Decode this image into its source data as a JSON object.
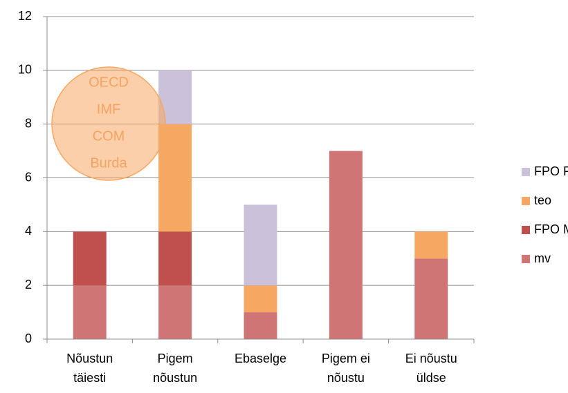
{
  "chart_data": {
    "type": "stacked_bar",
    "categories": [
      "Nõustun\ntäiesti",
      "Pigem\nnõustun",
      "Ebaselge",
      "Pigem ei\nnõustu",
      "Ei nõustu\nüldse"
    ],
    "series": [
      {
        "name": "mv",
        "color": "#d07575",
        "values": [
          2,
          2,
          1,
          7,
          3
        ]
      },
      {
        "name": "FPO M",
        "color": "#c0504d",
        "values": [
          2,
          2,
          0,
          0,
          0
        ]
      },
      {
        "name": "teo",
        "color": "#f6a862",
        "values": [
          0,
          4,
          1,
          0,
          1
        ]
      },
      {
        "name": "FPO F",
        "color": "#ccc1da",
        "values": [
          0,
          2,
          3,
          0,
          0
        ]
      }
    ],
    "ylim": [
      0,
      12
    ],
    "yticks": [
      0,
      2,
      4,
      6,
      8,
      10,
      12
    ],
    "grid": true,
    "legend": "right",
    "annotation": {
      "lines": [
        "OECD",
        "IMF",
        "COM",
        "Burda"
      ]
    }
  }
}
